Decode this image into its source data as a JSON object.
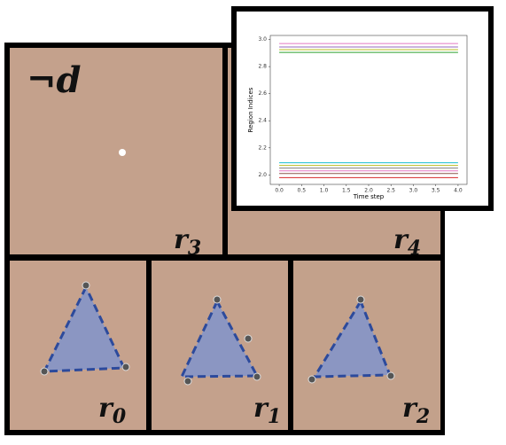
{
  "scene": {
    "negation_label": "¬d",
    "regions": [
      {
        "label": "r",
        "sub": "3"
      },
      {
        "label": "r",
        "sub": "4"
      },
      {
        "label": "r",
        "sub": "0"
      },
      {
        "label": "r",
        "sub": "1"
      },
      {
        "label": "r",
        "sub": "2"
      }
    ]
  },
  "chart_data": {
    "type": "line",
    "x_label": "Time step",
    "y_label": "Region Indices",
    "x": [
      0,
      1,
      2,
      3,
      4
    ],
    "series": [
      {
        "color": "#e377c2",
        "values": [
          2.97,
          2.97,
          2.97,
          2.97,
          2.97
        ]
      },
      {
        "color": "#9467bd",
        "values": [
          2.945,
          2.945,
          2.945,
          2.945,
          2.945
        ]
      },
      {
        "color": "#bcbd22",
        "values": [
          2.925,
          2.925,
          2.925,
          2.925,
          2.925
        ]
      },
      {
        "color": "#2ca02c",
        "values": [
          2.905,
          2.905,
          2.905,
          2.905,
          2.905
        ]
      },
      {
        "color": "#17becf",
        "values": [
          2.09,
          2.09,
          2.09,
          2.09,
          2.09
        ]
      },
      {
        "color": "#bcbd22",
        "values": [
          2.07,
          2.07,
          2.07,
          2.07,
          2.07
        ]
      },
      {
        "color": "#7f7f7f",
        "values": [
          2.05,
          2.05,
          2.05,
          2.05,
          2.05
        ]
      },
      {
        "color": "#e377c2",
        "values": [
          2.03,
          2.03,
          2.03,
          2.03,
          2.03
        ]
      },
      {
        "color": "#8c564b",
        "values": [
          2.01,
          2.01,
          2.01,
          2.01,
          2.01
        ]
      },
      {
        "color": "#d62728",
        "values": [
          1.98,
          1.98,
          1.98,
          1.98,
          1.98
        ]
      }
    ],
    "xlim": [
      -0.2,
      4.2
    ],
    "xticks": [
      {
        "value": 0,
        "label": "0.0"
      },
      0.5,
      {
        "value": 1,
        "label": "1.0"
      },
      1.5,
      {
        "value": 2,
        "label": "2.0"
      },
      2.5,
      {
        "value": 3,
        "label": "3.0"
      },
      3.5,
      {
        "value": 4,
        "label": "4.0"
      }
    ],
    "ylim": [
      1.93,
      3.03
    ],
    "yticks": [
      {
        "value": 2,
        "label": "2.0"
      },
      2.2,
      2.4,
      2.6,
      2.8,
      {
        "value": 3,
        "label": "3.0"
      }
    ]
  }
}
